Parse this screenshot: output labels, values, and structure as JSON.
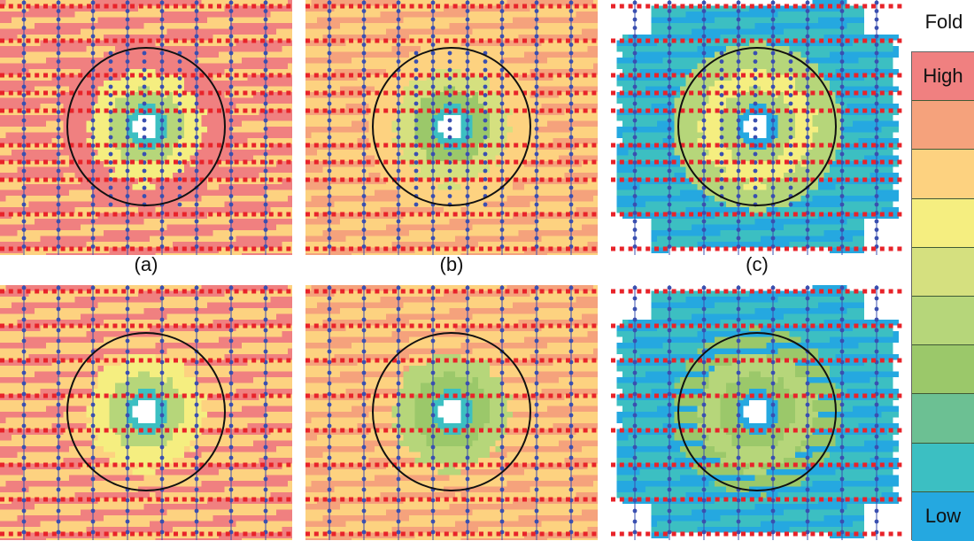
{
  "figure": {
    "panel_labels": [
      "(a)",
      "(b)",
      "(c)"
    ],
    "legend": {
      "title": "Fold",
      "high_label": "High",
      "low_label": "Low",
      "bands": [
        "#f08080",
        "#f5a27c",
        "#fdd280",
        "#f5ee80",
        "#d5e07f",
        "#b6d67a",
        "#9bc86a",
        "#6cc093",
        "#3cbfc2",
        "#25a8e0"
      ]
    },
    "colors": {
      "source_line": "#e8232a",
      "receiver_line": "#3a4fb0",
      "circle": "#111111",
      "center_hole": "#ffffff"
    },
    "panels": [
      {
        "id": "top-a",
        "row": "top",
        "label_index": 0,
        "base": "#f08080",
        "ring": [
          "#f5ee80",
          "#b6d67a",
          "#3cbfc2"
        ],
        "edge": "#fdd280",
        "layout": "orthogonal",
        "clip": false
      },
      {
        "id": "top-b",
        "row": "top",
        "label_index": 1,
        "base": "#fdd280",
        "ring": [
          "#d5e07f",
          "#9bc86a",
          "#3cbfc2"
        ],
        "edge": "#f5a27c",
        "layout": "orthogonal",
        "clip": false
      },
      {
        "id": "top-c",
        "row": "top",
        "label_index": 2,
        "base": "#3cbfc2",
        "ring": [
          "#f5ee80",
          "#b6d67a",
          "#25a8e0"
        ],
        "edge": "#25a8e0",
        "layout": "orthogonal",
        "clip": true
      },
      {
        "id": "bottom-a",
        "row": "bottom",
        "base": "#fdd280",
        "ring": [
          "#f5ee80",
          "#b6d67a",
          "#3cbfc2"
        ],
        "edge": "#f08080",
        "layout": "sparse",
        "clip": false
      },
      {
        "id": "bottom-b",
        "row": "bottom",
        "base": "#fdd280",
        "ring": [
          "#b6d67a",
          "#9bc86a",
          "#3cbfc2"
        ],
        "edge": "#f5a27c",
        "layout": "sparse",
        "clip": false
      },
      {
        "id": "bottom-c",
        "row": "bottom",
        "base": "#3cbfc2",
        "ring": [
          "#b6d67a",
          "#9bc86a",
          "#25a8e0"
        ],
        "edge": "#25a8e0",
        "layout": "sparse",
        "clip": true
      }
    ]
  }
}
